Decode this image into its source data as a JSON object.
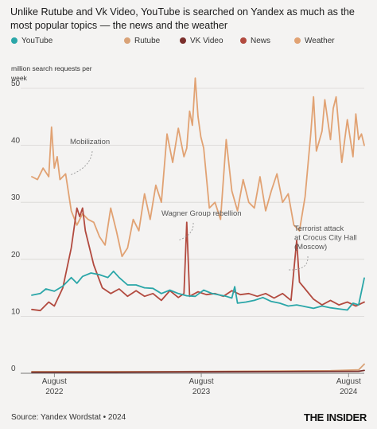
{
  "title": "Unlike Rutube and Vk Video, YouTube is searched on Yandex as much as the most popular topics — the news and the weather",
  "source": "Source: Yandex Wordstat • 2024",
  "brand": "THE INSIDER",
  "chart_data": {
    "type": "line",
    "title": "Unlike Rutube and Vk Video, YouTube is searched on Yandex as much as the most popular topics — the news and the weather",
    "ylabel": "million search requests per week",
    "xlabel": "",
    "ylim": [
      0,
      50
    ],
    "xlim": [
      "2022-06-06",
      "2024-09-09"
    ],
    "yticks": [
      0,
      10,
      20,
      30,
      40,
      50
    ],
    "xticks": [
      {
        "date": "2022-08-01",
        "line1": "August",
        "line2": "2022"
      },
      {
        "date": "2023-08-01",
        "line1": "August",
        "line2": "2023"
      },
      {
        "date": "2024-08-01",
        "line1": "August",
        "line2": "2024"
      }
    ],
    "grid": true,
    "legend": "top",
    "series": [
      {
        "name": "YouTube",
        "color": "#2aa6a8",
        "points": [
          [
            "2022-06-06",
            13.7
          ],
          [
            "2022-06-27",
            14.0
          ],
          [
            "2022-07-11",
            14.8
          ],
          [
            "2022-08-01",
            14.4
          ],
          [
            "2022-08-22",
            15.3
          ],
          [
            "2022-09-12",
            16.8
          ],
          [
            "2022-09-26",
            15.8
          ],
          [
            "2022-10-10",
            17.0
          ],
          [
            "2022-10-31",
            17.6
          ],
          [
            "2022-11-21",
            17.3
          ],
          [
            "2022-12-12",
            16.8
          ],
          [
            "2022-12-26",
            17.9
          ],
          [
            "2023-01-09",
            16.8
          ],
          [
            "2023-01-30",
            15.5
          ],
          [
            "2023-02-20",
            15.5
          ],
          [
            "2023-03-13",
            15.0
          ],
          [
            "2023-04-03",
            14.9
          ],
          [
            "2023-04-24",
            14.0
          ],
          [
            "2023-05-15",
            14.6
          ],
          [
            "2023-06-05",
            14.0
          ],
          [
            "2023-06-26",
            13.6
          ],
          [
            "2023-07-17",
            13.5
          ],
          [
            "2023-08-07",
            14.6
          ],
          [
            "2023-08-28",
            14.0
          ],
          [
            "2023-09-18",
            13.7
          ],
          [
            "2023-10-02",
            13.5
          ],
          [
            "2023-10-16",
            13.2
          ],
          [
            "2023-10-23",
            15.2
          ],
          [
            "2023-10-30",
            12.3
          ],
          [
            "2023-11-20",
            12.5
          ],
          [
            "2023-12-11",
            12.8
          ],
          [
            "2024-01-01",
            13.3
          ],
          [
            "2024-01-22",
            12.6
          ],
          [
            "2024-02-12",
            12.3
          ],
          [
            "2024-03-04",
            11.8
          ],
          [
            "2024-03-25",
            12.0
          ],
          [
            "2024-04-15",
            11.7
          ],
          [
            "2024-05-06",
            11.4
          ],
          [
            "2024-05-27",
            11.8
          ],
          [
            "2024-06-17",
            11.5
          ],
          [
            "2024-07-08",
            11.3
          ],
          [
            "2024-07-29",
            11.1
          ],
          [
            "2024-08-12",
            12.3
          ],
          [
            "2024-08-26",
            12.0
          ],
          [
            "2024-09-09",
            16.7
          ]
        ]
      },
      {
        "name": "Rutube",
        "color": "#d9a277",
        "points": [
          [
            "2022-06-06",
            0.3
          ],
          [
            "2022-09-26",
            0.3
          ],
          [
            "2023-01-30",
            0.3
          ],
          [
            "2023-06-05",
            0.3
          ],
          [
            "2023-10-09",
            0.35
          ],
          [
            "2024-02-12",
            0.4
          ],
          [
            "2024-06-17",
            0.45
          ],
          [
            "2024-08-26",
            0.6
          ],
          [
            "2024-09-09",
            1.6
          ]
        ]
      },
      {
        "name": "VK Video",
        "color": "#7a2e2b",
        "points": [
          [
            "2022-06-06",
            0.2
          ],
          [
            "2022-12-26",
            0.2
          ],
          [
            "2023-07-17",
            0.25
          ],
          [
            "2024-02-05",
            0.3
          ],
          [
            "2024-08-26",
            0.35
          ],
          [
            "2024-09-09",
            0.5
          ]
        ]
      },
      {
        "name": "News",
        "color": "#b24a3f",
        "points": [
          [
            "2022-06-06",
            11.2
          ],
          [
            "2022-06-27",
            11.0
          ],
          [
            "2022-07-18",
            12.5
          ],
          [
            "2022-08-01",
            11.8
          ],
          [
            "2022-08-22",
            15.0
          ],
          [
            "2022-09-12",
            22.0
          ],
          [
            "2022-09-26",
            29.0
          ],
          [
            "2022-10-03",
            27.5
          ],
          [
            "2022-10-10",
            29.0
          ],
          [
            "2022-10-17",
            25.0
          ],
          [
            "2022-11-07",
            19.0
          ],
          [
            "2022-11-28",
            15.0
          ],
          [
            "2022-12-19",
            14.0
          ],
          [
            "2023-01-09",
            14.8
          ],
          [
            "2023-01-30",
            13.5
          ],
          [
            "2023-02-20",
            14.5
          ],
          [
            "2023-03-13",
            13.5
          ],
          [
            "2023-04-03",
            14.0
          ],
          [
            "2023-04-24",
            12.8
          ],
          [
            "2023-05-15",
            14.5
          ],
          [
            "2023-06-05",
            13.3
          ],
          [
            "2023-06-19",
            14.0
          ],
          [
            "2023-06-26",
            26.5
          ],
          [
            "2023-07-03",
            13.5
          ],
          [
            "2023-07-24",
            14.3
          ],
          [
            "2023-08-14",
            13.8
          ],
          [
            "2023-09-04",
            14.0
          ],
          [
            "2023-09-25",
            13.5
          ],
          [
            "2023-10-16",
            14.5
          ],
          [
            "2023-11-06",
            13.8
          ],
          [
            "2023-11-27",
            14.0
          ],
          [
            "2023-12-18",
            13.5
          ],
          [
            "2024-01-08",
            14.0
          ],
          [
            "2024-01-29",
            13.2
          ],
          [
            "2024-02-19",
            14.0
          ],
          [
            "2024-03-11",
            12.8
          ],
          [
            "2024-03-25",
            23.3
          ],
          [
            "2024-04-01",
            16.0
          ],
          [
            "2024-04-15",
            14.8
          ],
          [
            "2024-05-06",
            13.0
          ],
          [
            "2024-05-27",
            12.0
          ],
          [
            "2024-06-17",
            12.8
          ],
          [
            "2024-07-08",
            12.0
          ],
          [
            "2024-07-29",
            12.5
          ],
          [
            "2024-08-19",
            11.8
          ],
          [
            "2024-09-09",
            12.5
          ]
        ]
      },
      {
        "name": "Weather",
        "color": "#e1a273",
        "points": [
          [
            "2022-06-06",
            34.5
          ],
          [
            "2022-06-20",
            34.0
          ],
          [
            "2022-07-04",
            36.0
          ],
          [
            "2022-07-18",
            34.5
          ],
          [
            "2022-07-25",
            43.2
          ],
          [
            "2022-08-01",
            36.0
          ],
          [
            "2022-08-08",
            38.0
          ],
          [
            "2022-08-15",
            34.0
          ],
          [
            "2022-08-29",
            35.0
          ],
          [
            "2022-09-12",
            28.5
          ],
          [
            "2022-09-26",
            26.0
          ],
          [
            "2022-10-10",
            28.0
          ],
          [
            "2022-10-24",
            27.0
          ],
          [
            "2022-11-07",
            26.5
          ],
          [
            "2022-11-21",
            24.0
          ],
          [
            "2022-12-05",
            22.5
          ],
          [
            "2022-12-19",
            29.0
          ],
          [
            "2023-01-02",
            25.0
          ],
          [
            "2023-01-16",
            20.5
          ],
          [
            "2023-01-30",
            22.0
          ],
          [
            "2023-02-13",
            27.0
          ],
          [
            "2023-02-27",
            25.0
          ],
          [
            "2023-03-13",
            31.5
          ],
          [
            "2023-03-27",
            27.0
          ],
          [
            "2023-04-10",
            33.0
          ],
          [
            "2023-04-24",
            30.0
          ],
          [
            "2023-05-08",
            42.0
          ],
          [
            "2023-05-22",
            37.0
          ],
          [
            "2023-06-05",
            43.0
          ],
          [
            "2023-06-19",
            38.0
          ],
          [
            "2023-06-26",
            39.5
          ],
          [
            "2023-07-03",
            46.0
          ],
          [
            "2023-07-10",
            43.5
          ],
          [
            "2023-07-17",
            51.8
          ],
          [
            "2023-07-24",
            45.0
          ],
          [
            "2023-07-31",
            41.5
          ],
          [
            "2023-08-07",
            39.5
          ],
          [
            "2023-08-21",
            29.0
          ],
          [
            "2023-09-04",
            30.0
          ],
          [
            "2023-09-18",
            27.0
          ],
          [
            "2023-10-02",
            41.0
          ],
          [
            "2023-10-16",
            32.0
          ],
          [
            "2023-10-30",
            28.5
          ],
          [
            "2023-11-13",
            34.0
          ],
          [
            "2023-11-27",
            30.0
          ],
          [
            "2023-12-11",
            29.0
          ],
          [
            "2023-12-25",
            34.5
          ],
          [
            "2024-01-08",
            28.5
          ],
          [
            "2024-01-22",
            32.0
          ],
          [
            "2024-02-05",
            35.0
          ],
          [
            "2024-02-19",
            30.0
          ],
          [
            "2024-03-04",
            31.5
          ],
          [
            "2024-03-18",
            26.0
          ],
          [
            "2024-04-01",
            25.0
          ],
          [
            "2024-04-15",
            31.0
          ],
          [
            "2024-04-29",
            42.0
          ],
          [
            "2024-05-06",
            48.5
          ],
          [
            "2024-05-13",
            39.0
          ],
          [
            "2024-05-27",
            42.5
          ],
          [
            "2024-06-03",
            48.0
          ],
          [
            "2024-06-17",
            41.0
          ],
          [
            "2024-06-24",
            46.5
          ],
          [
            "2024-07-01",
            48.5
          ],
          [
            "2024-07-15",
            37.0
          ],
          [
            "2024-07-29",
            44.5
          ],
          [
            "2024-08-12",
            38.0
          ],
          [
            "2024-08-19",
            45.5
          ],
          [
            "2024-08-26",
            41.0
          ],
          [
            "2024-09-02",
            42.0
          ],
          [
            "2024-09-09",
            40.0
          ]
        ]
      }
    ],
    "annotations": [
      {
        "text": [
          "Mobilization"
        ],
        "color": "#555555"
      },
      {
        "text": [
          "Wagner Group rebellion"
        ],
        "color": "#555555"
      },
      {
        "text": [
          "Terrorist attack",
          "at Crocus City Hall",
          "(Moscow)"
        ],
        "color": "#555555"
      }
    ]
  }
}
